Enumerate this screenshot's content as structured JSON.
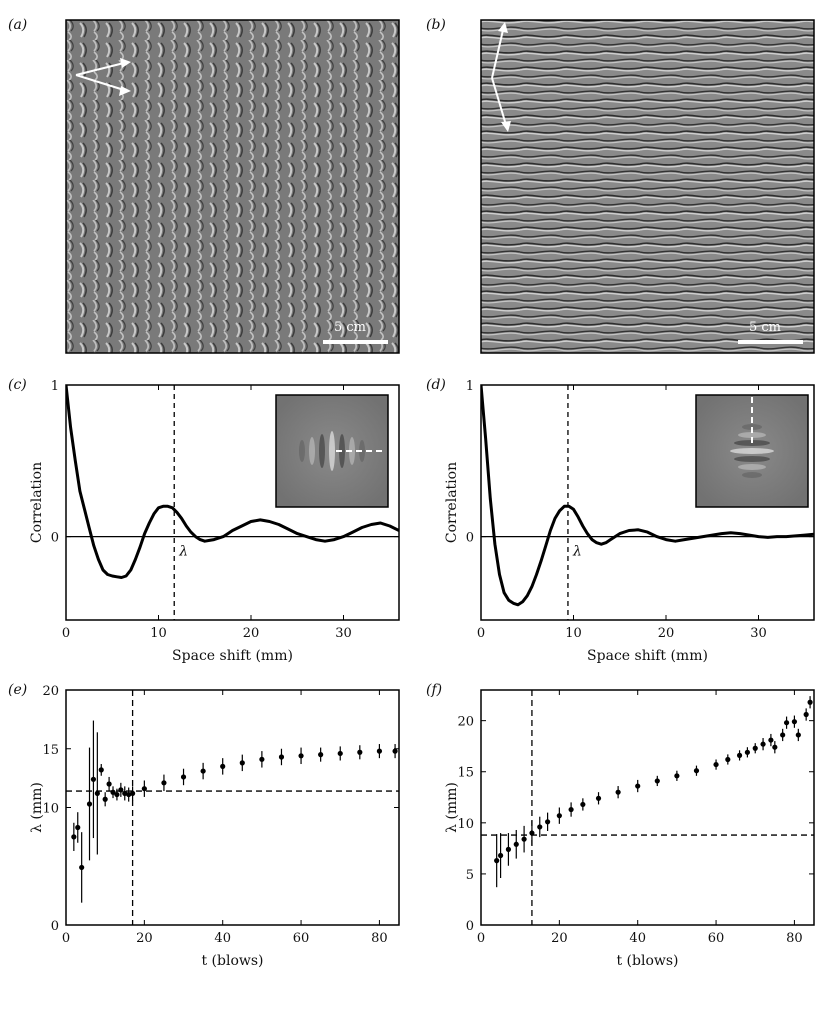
{
  "panels": {
    "a": {
      "label": "(a)",
      "scale_label": "5 cm",
      "tone": "#7d7d7d"
    },
    "b": {
      "label": "(b)",
      "scale_label": "5 cm",
      "tone": "#858585"
    }
  },
  "colors": {
    "line": "#000000",
    "white": "#ffffff"
  },
  "chart_data": [
    {
      "panel": "(c)",
      "type": "line",
      "xlabel": "Space shift (mm)",
      "ylabel": "Correlation",
      "xlim": [
        0,
        36
      ],
      "ylim": [
        -0.55,
        1.0
      ],
      "xticks": [
        0,
        10,
        20,
        30
      ],
      "yticks": [
        -1,
        0,
        1
      ],
      "ytick_labels": [
        "",
        "0",
        "1"
      ],
      "annotation": "λ",
      "vline_x": 11.7,
      "series": [
        {
          "x": [
            0,
            0.5,
            1,
            1.5,
            2,
            2.5,
            3,
            3.5,
            4,
            4.5,
            5,
            5.5,
            6,
            6.5,
            7,
            7.5,
            8,
            8.5,
            9,
            9.5,
            10,
            10.5,
            11,
            11.5,
            12,
            12.5,
            13,
            13.5,
            14,
            14.5,
            15,
            15.5,
            16,
            16.5,
            17,
            17.5,
            18,
            19,
            20,
            21,
            22,
            23,
            24,
            25,
            26,
            27,
            28,
            29,
            30,
            31,
            32,
            33,
            34,
            35,
            36
          ],
          "y": [
            1.0,
            0.72,
            0.5,
            0.3,
            0.18,
            0.06,
            -0.06,
            -0.15,
            -0.22,
            -0.25,
            -0.26,
            -0.265,
            -0.27,
            -0.26,
            -0.22,
            -0.15,
            -0.07,
            0.02,
            0.09,
            0.15,
            0.19,
            0.2,
            0.2,
            0.19,
            0.16,
            0.12,
            0.07,
            0.03,
            0.0,
            -0.02,
            -0.03,
            -0.025,
            -0.02,
            -0.01,
            0.0,
            0.02,
            0.04,
            0.07,
            0.1,
            0.11,
            0.1,
            0.08,
            0.05,
            0.02,
            0.0,
            -0.02,
            -0.03,
            -0.02,
            0.0,
            0.03,
            0.06,
            0.08,
            0.09,
            0.07,
            0.04
          ]
        }
      ]
    },
    {
      "panel": "(d)",
      "type": "line",
      "xlabel": "Space shift (mm)",
      "ylabel": "Correlation",
      "xlim": [
        0,
        36
      ],
      "ylim": [
        -0.55,
        1.0
      ],
      "xticks": [
        0,
        10,
        20,
        30
      ],
      "yticks": [
        -1,
        0,
        1
      ],
      "ytick_labels": [
        "",
        "0",
        "1"
      ],
      "annotation": "λ",
      "vline_x": 9.4,
      "series": [
        {
          "x": [
            0,
            0.5,
            1,
            1.5,
            2,
            2.5,
            3,
            3.5,
            4,
            4.5,
            5,
            5.5,
            6,
            6.5,
            7,
            7.5,
            8,
            8.5,
            9,
            9.5,
            10,
            10.5,
            11,
            11.5,
            12,
            12.5,
            13,
            13.5,
            14,
            15,
            16,
            17,
            18,
            19,
            20,
            21,
            22,
            23,
            24,
            25,
            26,
            27,
            28,
            29,
            30,
            31,
            32,
            33,
            34,
            35,
            36
          ],
          "y": [
            1.0,
            0.65,
            0.25,
            -0.05,
            -0.25,
            -0.37,
            -0.42,
            -0.44,
            -0.45,
            -0.43,
            -0.39,
            -0.33,
            -0.25,
            -0.16,
            -0.06,
            0.04,
            0.12,
            0.17,
            0.2,
            0.2,
            0.18,
            0.13,
            0.07,
            0.02,
            -0.02,
            -0.04,
            -0.05,
            -0.04,
            -0.02,
            0.02,
            0.04,
            0.045,
            0.03,
            0.0,
            -0.02,
            -0.03,
            -0.02,
            -0.01,
            0.0,
            0.01,
            0.02,
            0.025,
            0.02,
            0.01,
            0.0,
            -0.005,
            0.0,
            0.0,
            0.005,
            0.01,
            0.015
          ]
        }
      ]
    },
    {
      "panel": "(e)",
      "type": "scatter",
      "xlabel": "t (blows)",
      "ylabel": "λ (mm)",
      "xlim": [
        0,
        85
      ],
      "ylim": [
        0,
        20
      ],
      "xticks": [
        0,
        20,
        40,
        60,
        80
      ],
      "yticks": [
        0,
        10,
        15,
        20
      ],
      "hline_y": 11.4,
      "vline_x": 17,
      "series": [
        {
          "name": "",
          "x": [
            2,
            3,
            4,
            6,
            7,
            8,
            9,
            10,
            11,
            12,
            13,
            14,
            15,
            16,
            17,
            20,
            25,
            30,
            35,
            40,
            45,
            50,
            55,
            60,
            65,
            70,
            75,
            80,
            84
          ],
          "y": [
            7.5,
            8.3,
            4.9,
            10.3,
            12.4,
            11.2,
            13.2,
            10.7,
            12.0,
            11.3,
            11.1,
            11.5,
            11.2,
            11.1,
            11.2,
            11.6,
            12.1,
            12.6,
            13.1,
            13.5,
            13.8,
            14.1,
            14.3,
            14.4,
            14.5,
            14.6,
            14.7,
            14.8,
            14.8
          ],
          "yerr": [
            1.2,
            1.3,
            3.0,
            4.8,
            5.0,
            5.2,
            0.5,
            0.6,
            0.6,
            0.5,
            0.5,
            0.6,
            0.6,
            0.6,
            0.6,
            0.7,
            0.7,
            0.7,
            0.7,
            0.7,
            0.7,
            0.7,
            0.7,
            0.7,
            0.6,
            0.6,
            0.6,
            0.6,
            0.6
          ]
        }
      ]
    },
    {
      "panel": "(f)",
      "type": "scatter",
      "xlabel": "t (blows)",
      "ylabel": "λ (mm)",
      "xlim": [
        0,
        85
      ],
      "ylim": [
        0,
        23
      ],
      "xticks": [
        0,
        20,
        40,
        60,
        80
      ],
      "yticks": [
        0,
        5,
        10,
        15,
        20
      ],
      "hline_y": 8.8,
      "vline_x": 13,
      "series": [
        {
          "name": "",
          "x": [
            4,
            5,
            7,
            9,
            11,
            13,
            15,
            17,
            20,
            23,
            26,
            30,
            35,
            40,
            45,
            50,
            55,
            60,
            63,
            66,
            68,
            70,
            72,
            74,
            75,
            77,
            78,
            80,
            81,
            83,
            84
          ],
          "y": [
            6.3,
            6.8,
            7.4,
            7.9,
            8.4,
            9.0,
            9.6,
            10.1,
            10.7,
            11.3,
            11.8,
            12.4,
            13.0,
            13.6,
            14.1,
            14.6,
            15.1,
            15.7,
            16.2,
            16.6,
            16.9,
            17.3,
            17.7,
            18.1,
            17.4,
            18.6,
            19.8,
            19.9,
            18.6,
            20.6,
            21.8
          ],
          "yerr": [
            2.6,
            2.2,
            1.6,
            1.4,
            1.3,
            1.2,
            1.0,
            0.9,
            0.8,
            0.7,
            0.6,
            0.6,
            0.6,
            0.6,
            0.5,
            0.5,
            0.5,
            0.5,
            0.5,
            0.5,
            0.5,
            0.5,
            0.6,
            0.6,
            0.6,
            0.6,
            0.6,
            0.6,
            0.6,
            0.6,
            0.6
          ]
        }
      ]
    }
  ]
}
